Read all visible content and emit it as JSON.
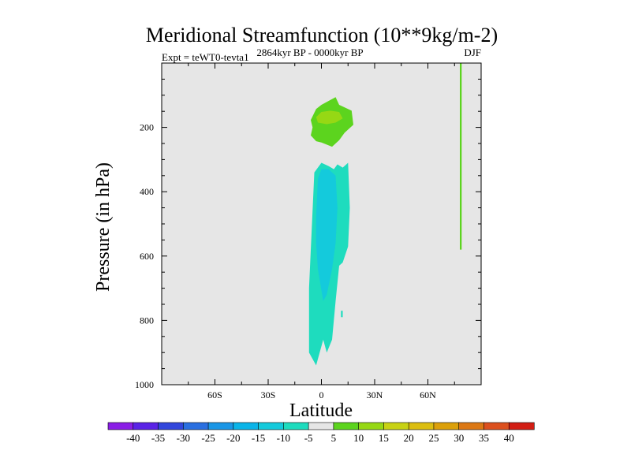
{
  "chart_data": {
    "type": "contour",
    "title": "Meridional Streamfunction (10**9kg/m-2)",
    "left_label": "Expt = teWT0-tevta1",
    "center_label": "2864kyr BP - 0000kyr BP",
    "right_label": "DJF",
    "xlabel": "Latitude",
    "ylabel": "Pressure (in hPa)",
    "xlim": [
      -90,
      90
    ],
    "ylim": [
      1000,
      0
    ],
    "x_ticks": [
      {
        "value": -60,
        "label": "60S"
      },
      {
        "value": -30,
        "label": "30S"
      },
      {
        "value": 0,
        "label": "0"
      },
      {
        "value": 30,
        "label": "30N"
      },
      {
        "value": 60,
        "label": "60N"
      }
    ],
    "y_ticks": [
      {
        "value": 200,
        "label": "200"
      },
      {
        "value": 400,
        "label": "400"
      },
      {
        "value": 600,
        "label": "600"
      },
      {
        "value": 800,
        "label": "800"
      },
      {
        "value": 1000,
        "label": "1000"
      }
    ],
    "background_color": "#e6e6e6",
    "colorbar": {
      "labels": [
        "-40",
        "-35",
        "-30",
        "-25",
        "-20",
        "-15",
        "-10",
        "-5",
        "5",
        "10",
        "15",
        "20",
        "25",
        "30",
        "35",
        "40"
      ],
      "colors": [
        "#8a1ee6",
        "#5a23e6",
        "#3246dc",
        "#2a6fe0",
        "#1a96e6",
        "#0ab4e8",
        "#14cadc",
        "#1edcbe",
        "#e6e6e6",
        "#5cd41e",
        "#96d814",
        "#c8d214",
        "#dcbe10",
        "#dca00a",
        "#dc7814",
        "#dc501e",
        "#d21e14"
      ]
    },
    "regions": [
      {
        "name": "tropical-upper-positive-outer",
        "value": 5,
        "color": "#5cd41e",
        "points": [
          [
            -6,
            177
          ],
          [
            -3,
            143
          ],
          [
            0,
            130
          ],
          [
            8,
            106
          ],
          [
            10,
            130
          ],
          [
            17,
            148
          ],
          [
            18,
            192
          ],
          [
            13,
            217
          ],
          [
            10,
            240
          ],
          [
            6,
            260
          ],
          [
            0,
            247
          ],
          [
            -3,
            243
          ],
          [
            -6,
            225
          ],
          [
            -5,
            200
          ]
        ]
      },
      {
        "name": "tropical-upper-positive-inner",
        "value": 10,
        "color": "#96d814",
        "points": [
          [
            -3,
            168
          ],
          [
            0,
            152
          ],
          [
            5,
            148
          ],
          [
            10,
            152
          ],
          [
            12,
            172
          ],
          [
            8,
            185
          ],
          [
            3,
            190
          ],
          [
            -2,
            185
          ]
        ]
      },
      {
        "name": "tropical-negative-outer",
        "value": -5,
        "color": "#1edcbe",
        "points": [
          [
            -4,
            340
          ],
          [
            0,
            310
          ],
          [
            4,
            320
          ],
          [
            7,
            330
          ],
          [
            9,
            315
          ],
          [
            12,
            325
          ],
          [
            15,
            310
          ],
          [
            16,
            450
          ],
          [
            15,
            570
          ],
          [
            12,
            620
          ],
          [
            10,
            630
          ],
          [
            8,
            740
          ],
          [
            6,
            860
          ],
          [
            3,
            900
          ],
          [
            1,
            860
          ],
          [
            -3,
            940
          ],
          [
            -7,
            900
          ],
          [
            -7,
            700
          ]
        ]
      },
      {
        "name": "tropical-negative-inner",
        "value": -10,
        "color": "#14cadc",
        "points": [
          [
            -3,
            480
          ],
          [
            -2,
            360
          ],
          [
            0,
            330
          ],
          [
            4,
            330
          ],
          [
            8,
            350
          ],
          [
            9,
            450
          ],
          [
            8,
            560
          ],
          [
            6,
            640
          ],
          [
            3,
            720
          ],
          [
            1,
            740
          ],
          [
            -2,
            640
          ],
          [
            -3,
            560
          ]
        ]
      },
      {
        "name": "tropical-negative-speck",
        "value": -5,
        "color": "#1edcbe",
        "points": [
          [
            11,
            770
          ],
          [
            12,
            770
          ],
          [
            12,
            790
          ],
          [
            11,
            790
          ]
        ]
      },
      {
        "name": "high-latitude-positive-strip",
        "value": 5,
        "color": "#5cd41e",
        "points": [
          [
            78,
            -20
          ],
          [
            79,
            -20
          ],
          [
            79,
            580
          ],
          [
            78,
            580
          ]
        ]
      }
    ]
  }
}
